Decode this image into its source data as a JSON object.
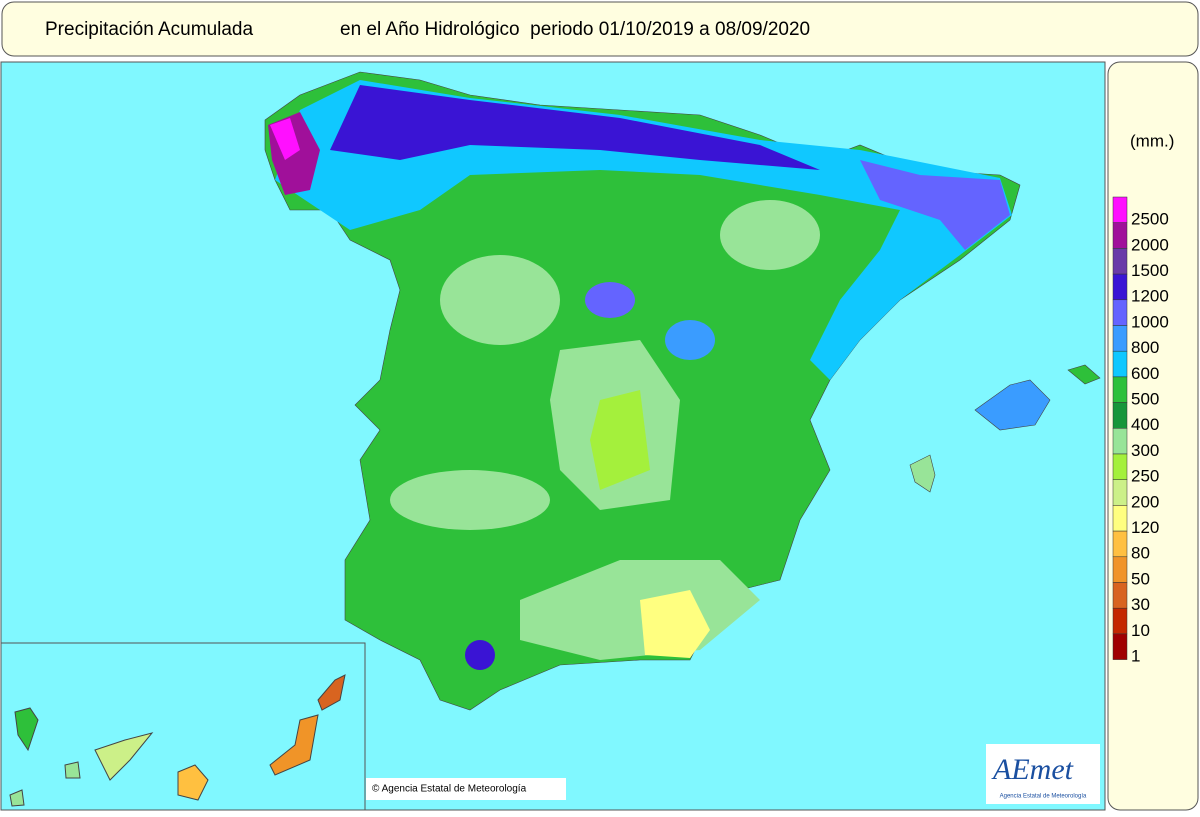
{
  "header": {
    "title": "Precipitación Acumulada",
    "subtitle": "en el Año Hidrológico  periodo 01/10/2019 a 08/09/2020"
  },
  "legend": {
    "unit": "(mm.)",
    "entries": [
      {
        "value": 2500,
        "color": "#ff10ff"
      },
      {
        "value": 2000,
        "color": "#a0109a"
      },
      {
        "value": 1500,
        "color": "#6a3aa8"
      },
      {
        "value": 1200,
        "color": "#3a14d4"
      },
      {
        "value": 1000,
        "color": "#6464ff"
      },
      {
        "value": 800,
        "color": "#3a9cff"
      },
      {
        "value": 600,
        "color": "#10c8ff"
      },
      {
        "value": 500,
        "color": "#2ec03a"
      },
      {
        "value": 400,
        "color": "#18963a"
      },
      {
        "value": 300,
        "color": "#98e498"
      },
      {
        "value": 250,
        "color": "#a4f03c"
      },
      {
        "value": 200,
        "color": "#ccf088"
      },
      {
        "value": 120,
        "color": "#ffff80"
      },
      {
        "value": 80,
        "color": "#ffc040"
      },
      {
        "value": 50,
        "color": "#f09428"
      },
      {
        "value": 30,
        "color": "#d86420"
      },
      {
        "value": 10,
        "color": "#c42800"
      },
      {
        "value": 1,
        "color": "#a00000"
      }
    ]
  },
  "footer": {
    "copyright": "© Agencia Estatal de Meteorología",
    "logo": "AEmet",
    "logo_caption": "Agencia Estatal de Meteorología"
  }
}
